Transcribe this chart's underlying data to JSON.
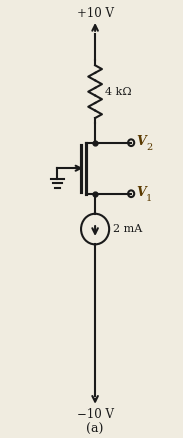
{
  "bg_color": "#f0ece0",
  "line_color": "#1a1a1a",
  "text_color": "#1a1a1a",
  "italic_color": "#5a3a00",
  "fig_width": 1.83,
  "fig_height": 4.38,
  "dpi": 100,
  "title": "(a)",
  "vdd_label": "+10 V",
  "vss_label": "−10 V",
  "resistor_label": "4 kΩ",
  "current_label": "2 mA",
  "v2_label": "V",
  "v1_label": "V",
  "v2_sub": "2",
  "v1_sub": "1",
  "mx": 5.2,
  "xlim": [
    0,
    10
  ],
  "ylim": [
    0,
    22
  ]
}
